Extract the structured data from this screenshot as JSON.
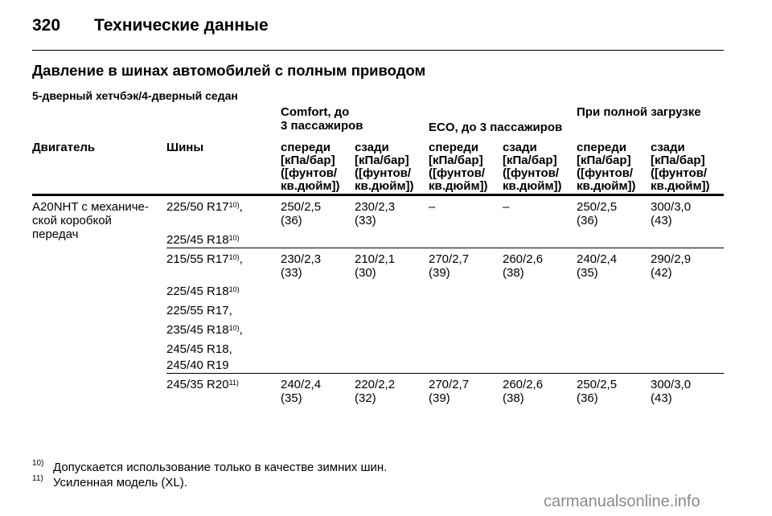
{
  "header": {
    "page_number": "320",
    "title": "Технические данные"
  },
  "section_title": "Давление в шинах автомобилей с полным приводом",
  "subsection_title": "5-дверный хетчбэк/4-дверный седан",
  "table": {
    "group_headers": {
      "comfort_line1": "Comfort, до",
      "comfort_line2": "3 пассажиров",
      "eco": "ECO, до 3 пассажиров",
      "full": "При полной загрузке"
    },
    "col_engine": "Двигатель",
    "col_tyres": "Шины",
    "front": "спереди",
    "rear": "сзади",
    "unit_l1": "[кПа/бар]",
    "unit_l2": "([фунтов/",
    "unit_l3": "кв.дюйм])",
    "engine_l1": "A20NHT с механиче-",
    "engine_l2": "ской коробкой",
    "engine_l3": "передач",
    "footnote_ref_10": "10)",
    "footnote_ref_11": "11)",
    "rows": [
      {
        "tyres": [
          "225/50 R17",
          "225/45 R18"
        ],
        "values": [
          [
            "250/2,5",
            "(36)"
          ],
          [
            "230/2,3",
            "(33)"
          ],
          [
            "–",
            ""
          ],
          [
            "–",
            ""
          ],
          [
            "250/2,5",
            "(36)"
          ],
          [
            "300/3,0",
            "(43)"
          ]
        ]
      },
      {
        "tyres": [
          "215/55 R17",
          "225/45 R18",
          "225/55 R17,",
          "235/45 R18",
          "245/45 R18,",
          "245/40 R19"
        ],
        "values": [
          [
            "230/2,3",
            "(33)"
          ],
          [
            "210/2,1",
            "(30)"
          ],
          [
            "270/2,7",
            "(39)"
          ],
          [
            "260/2,6",
            "(38)"
          ],
          [
            "240/2,4",
            "(35)"
          ],
          [
            "290/2,9",
            "(42)"
          ]
        ]
      },
      {
        "tyres": [
          "245/35 R20"
        ],
        "values": [
          [
            "240/2,4",
            "(35)"
          ],
          [
            "220/2,2",
            "(32)"
          ],
          [
            "270/2,7",
            "(39)"
          ],
          [
            "260/2,6",
            "(38)"
          ],
          [
            "250/2,5",
            "(36)"
          ],
          [
            "300/3,0",
            "(43)"
          ]
        ]
      }
    ]
  },
  "footnotes": [
    {
      "mark": "10)",
      "text": "Допускается использование только в качестве зимних шин."
    },
    {
      "mark": "11)",
      "text": "Усиленная модель (XL)."
    }
  ],
  "watermark": "carmanualsonline.info"
}
